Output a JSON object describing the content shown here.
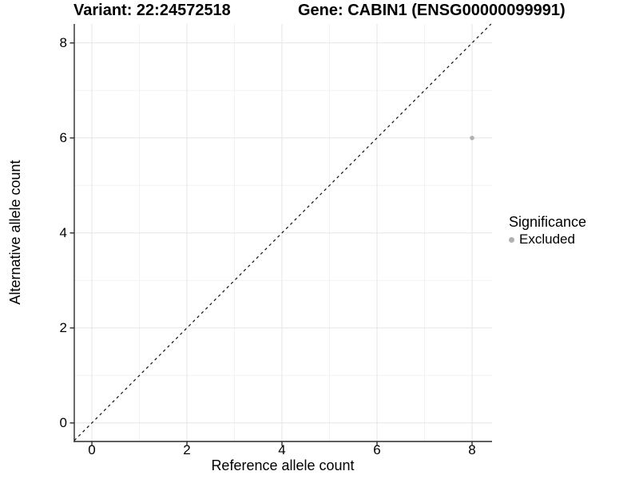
{
  "figure": {
    "title_left": "Variant: 22:24572518",
    "title_right": "Gene: CABIN1 (ENSG00000099991)"
  },
  "chart_data": {
    "type": "scatter",
    "title": "Variant: 22:24572518  /  Gene: CABIN1 (ENSG00000099991)",
    "xlabel": "Reference allele count",
    "ylabel": "Alternative allele count",
    "xlim": [
      -0.37,
      8.42
    ],
    "ylim": [
      -0.39,
      8.4
    ],
    "xticks": [
      0,
      2,
      4,
      6,
      8
    ],
    "yticks": [
      0,
      2,
      4,
      6,
      8
    ],
    "xticks_minor": [
      1,
      3,
      5,
      7
    ],
    "yticks_minor": [
      1,
      3,
      5,
      7
    ],
    "grid": true,
    "points": [
      {
        "x": 8,
        "y": 6,
        "series": "Excluded"
      }
    ],
    "reference_line": {
      "type": "identity",
      "style": "dashed"
    },
    "legend": {
      "position": "right",
      "title": "Significance",
      "items": [
        {
          "label": "Excluded",
          "color": "#b0b0b0",
          "marker": "circle"
        }
      ]
    },
    "colors": {
      "point": "#b0b0b0",
      "grid_major": "#e5e5e5",
      "grid_minor": "#f2f2f2",
      "axis": "#2b2b2b",
      "reference_line": "#111111",
      "background": "#ffffff"
    }
  }
}
